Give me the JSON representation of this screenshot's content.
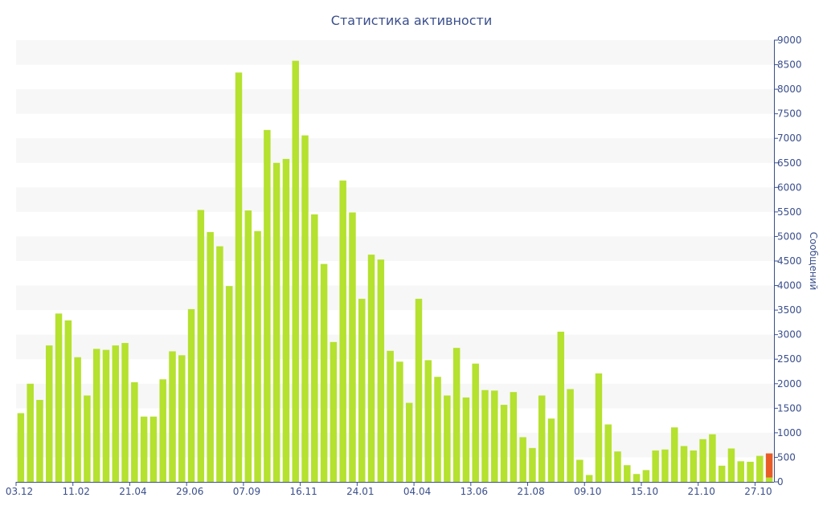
{
  "chart_data": {
    "type": "bar",
    "title": "Статистика активности",
    "ylabel": "Сообщений",
    "ylim": [
      0,
      9000
    ],
    "yticks": [
      0,
      500,
      1000,
      1500,
      2000,
      2500,
      3000,
      3500,
      4000,
      4500,
      5000,
      5500,
      6000,
      6500,
      7000,
      7500,
      8000,
      8500,
      9000
    ],
    "xticks": [
      {
        "label": "03.12",
        "index": 0
      },
      {
        "label": "11.02",
        "index": 6
      },
      {
        "label": "21.04",
        "index": 12
      },
      {
        "label": "29.06",
        "index": 18
      },
      {
        "label": "07.09",
        "index": 24
      },
      {
        "label": "16.11",
        "index": 30
      },
      {
        "label": "24.01",
        "index": 36
      },
      {
        "label": "04.04",
        "index": 42
      },
      {
        "label": "13.06",
        "index": 48
      },
      {
        "label": "21.08",
        "index": 54
      },
      {
        "label": "09.10",
        "index": 60
      },
      {
        "label": "15.10",
        "index": 66
      },
      {
        "label": "21.10",
        "index": 72
      },
      {
        "label": "27.10",
        "index": 78
      }
    ],
    "grid": "horizontal-bands",
    "y_axis_side": "right",
    "colors": {
      "bar": "#b5e12f",
      "highlight": "#e85c27",
      "band": "#f7f7f7",
      "axis": "#3a4f8c"
    },
    "series": [
      {
        "values": [
          1400,
          2000,
          1670,
          2780,
          3430,
          3290,
          2540,
          1760,
          2710,
          2690,
          2780,
          2830,
          2030,
          1330,
          1330,
          2090,
          2660,
          2580,
          3520,
          5540,
          5090,
          4800,
          3990,
          8340,
          5530,
          5110,
          7170,
          6500,
          6580,
          8580,
          7060,
          5450,
          4440,
          2850,
          6140,
          5490,
          3730,
          4630,
          4530,
          2670,
          2450,
          1610,
          3730,
          2480,
          2140,
          1760,
          2730,
          1720,
          2410,
          1870,
          1860,
          1570,
          1830,
          910,
          690,
          1760,
          1290,
          3060,
          1890,
          450,
          140,
          2210,
          1170,
          620,
          340,
          160,
          240,
          640,
          660,
          1110,
          730,
          640,
          870,
          970,
          330,
          680,
          420,
          410,
          530,
          90
        ]
      },
      {
        "values": [
          0,
          0,
          0,
          0,
          0,
          0,
          0,
          0,
          0,
          0,
          0,
          0,
          0,
          0,
          0,
          0,
          0,
          0,
          0,
          0,
          0,
          0,
          0,
          0,
          0,
          0,
          0,
          0,
          0,
          0,
          0,
          0,
          0,
          0,
          0,
          0,
          0,
          0,
          0,
          0,
          0,
          0,
          0,
          0,
          0,
          0,
          0,
          0,
          0,
          0,
          0,
          0,
          0,
          0,
          0,
          0,
          0,
          0,
          0,
          0,
          0,
          0,
          0,
          0,
          0,
          0,
          0,
          0,
          0,
          0,
          0,
          0,
          0,
          0,
          0,
          0,
          0,
          0,
          0,
          490
        ]
      }
    ]
  }
}
